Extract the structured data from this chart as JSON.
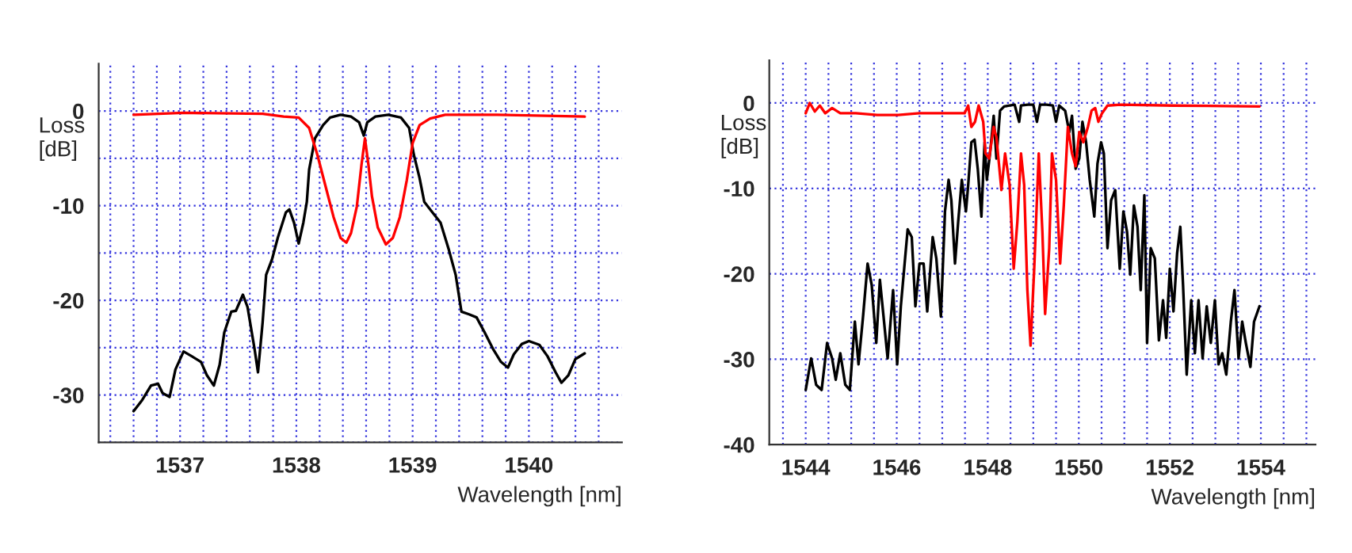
{
  "chart_data": [
    {
      "type": "line",
      "xlabel": "Wavelength [nm]",
      "ylabel": "Loss\n[dB]",
      "xlim": [
        1536.3,
        1540.8
      ],
      "ylim": [
        -35,
        5
      ],
      "xticks": [
        {
          "value": 1536.4,
          "label": null
        },
        {
          "value": 1536.6,
          "label": null
        },
        {
          "value": 1536.8,
          "label": null
        },
        1537,
        {
          "value": 1537.2,
          "label": null
        },
        {
          "value": 1537.4,
          "label": null
        },
        {
          "value": 1537.6,
          "label": null
        },
        {
          "value": 1537.8,
          "label": null
        },
        1538,
        {
          "value": 1538.2,
          "label": null
        },
        {
          "value": 1538.4,
          "label": null
        },
        {
          "value": 1538.6,
          "label": null
        },
        {
          "value": 1538.8,
          "label": null
        },
        1539,
        {
          "value": 1539.2,
          "label": null
        },
        {
          "value": 1539.4,
          "label": null
        },
        {
          "value": 1539.6,
          "label": null
        },
        {
          "value": 1539.8,
          "label": null
        },
        1540,
        {
          "value": 1540.2,
          "label": null
        },
        {
          "value": 1540.4,
          "label": null
        },
        {
          "value": 1540.6,
          "label": null
        }
      ],
      "yticks": [
        {
          "value": -35,
          "label": null
        },
        -30,
        {
          "value": -25,
          "label": null
        },
        -20,
        {
          "value": -15,
          "label": null
        },
        -10,
        {
          "value": -5,
          "label": null
        },
        0
      ],
      "grid": true,
      "legend": false,
      "marker": "none",
      "line_style": "solid",
      "series": [
        {
          "color": "#000000",
          "x": [
            1536.6,
            1536.67,
            1536.75,
            1536.81,
            1536.85,
            1536.91,
            1536.96,
            1537.03,
            1537.1,
            1537.18,
            1537.23,
            1537.29,
            1537.34,
            1537.38,
            1537.44,
            1537.48,
            1537.54,
            1537.58,
            1537.64,
            1537.67,
            1537.71,
            1537.74,
            1537.79,
            1537.84,
            1537.91,
            1537.94,
            1537.98,
            1538.02,
            1538.06,
            1538.09,
            1538.11,
            1538.16,
            1538.23,
            1538.29,
            1538.38,
            1538.47,
            1538.54,
            1538.58,
            1538.61,
            1538.68,
            1538.79,
            1538.9,
            1538.97,
            1539.01,
            1539.06,
            1539.1,
            1539.17,
            1539.24,
            1539.31,
            1539.37,
            1539.42,
            1539.49,
            1539.55,
            1539.62,
            1539.69,
            1539.76,
            1539.82,
            1539.87,
            1539.94,
            1540.0,
            1540.09,
            1540.16,
            1540.23,
            1540.28,
            1540.34,
            1540.4,
            1540.48
          ],
          "values": [
            -31.7,
            -30.6,
            -29.0,
            -28.8,
            -29.8,
            -30.2,
            -27.3,
            -25.4,
            -25.9,
            -26.5,
            -27.9,
            -29.0,
            -26.8,
            -23.4,
            -21.2,
            -21.1,
            -19.4,
            -20.7,
            -25.1,
            -27.6,
            -22.3,
            -17.3,
            -15.7,
            -13.4,
            -10.7,
            -10.4,
            -11.8,
            -14.0,
            -11.8,
            -9.6,
            -6.2,
            -2.9,
            -1.5,
            -0.7,
            -0.4,
            -0.6,
            -1.2,
            -2.6,
            -1.2,
            -0.6,
            -0.4,
            -0.7,
            -1.8,
            -4.6,
            -7.1,
            -9.6,
            -10.7,
            -11.8,
            -14.6,
            -17.3,
            -21.2,
            -21.5,
            -21.8,
            -23.4,
            -25.1,
            -26.5,
            -27.1,
            -25.7,
            -24.6,
            -24.3,
            -24.7,
            -25.9,
            -27.6,
            -28.7,
            -27.9,
            -26.2,
            -25.6
          ]
        },
        {
          "color": "#ff0000",
          "x": [
            1536.6,
            1537.03,
            1537.71,
            1537.89,
            1538.02,
            1538.11,
            1538.18,
            1538.25,
            1538.32,
            1538.38,
            1538.43,
            1538.47,
            1538.52,
            1538.56,
            1538.59,
            1538.62,
            1538.65,
            1538.7,
            1538.77,
            1538.83,
            1538.89,
            1538.95,
            1539.0,
            1539.06,
            1539.15,
            1539.28,
            1539.73,
            1540.48
          ],
          "values": [
            -0.4,
            -0.2,
            -0.3,
            -0.6,
            -0.7,
            -1.8,
            -4.6,
            -7.9,
            -11.2,
            -13.4,
            -13.9,
            -12.9,
            -10.1,
            -5.7,
            -2.9,
            -5.7,
            -9.0,
            -12.3,
            -14.1,
            -13.4,
            -11.2,
            -7.3,
            -3.4,
            -1.5,
            -0.8,
            -0.4,
            -0.4,
            -0.6
          ]
        }
      ]
    },
    {
      "type": "line",
      "xlabel": "Wavelength [nm]",
      "ylabel": "Loss\n[dB]",
      "xlim": [
        1543.2,
        1555.2
      ],
      "ylim": [
        -40,
        5
      ],
      "xticks": [
        {
          "value": 1543.5,
          "label": null
        },
        1544,
        {
          "value": 1544.5,
          "label": null
        },
        {
          "value": 1545,
          "label": null
        },
        {
          "value": 1545.5,
          "label": null
        },
        1546,
        {
          "value": 1546.5,
          "label": null
        },
        {
          "value": 1547,
          "label": null
        },
        {
          "value": 1547.5,
          "label": null
        },
        1548,
        {
          "value": 1548.5,
          "label": null
        },
        {
          "value": 1549,
          "label": null
        },
        {
          "value": 1549.5,
          "label": null
        },
        1550,
        {
          "value": 1550.5,
          "label": null
        },
        {
          "value": 1551,
          "label": null
        },
        {
          "value": 1551.5,
          "label": null
        },
        1552,
        {
          "value": 1552.5,
          "label": null
        },
        {
          "value": 1553,
          "label": null
        },
        {
          "value": 1553.5,
          "label": null
        },
        1554,
        {
          "value": 1554.5,
          "label": null
        },
        {
          "value": 1555,
          "label": null
        }
      ],
      "yticks": [
        -40,
        -30,
        -20,
        -10,
        0
      ],
      "grid": true,
      "legend": false,
      "marker": "none",
      "line_style": "solid",
      "series": [
        {
          "color": "#000000",
          "x": [
            1544.0,
            1544.12,
            1544.23,
            1544.35,
            1544.47,
            1544.58,
            1544.66,
            1544.76,
            1544.87,
            1544.97,
            1545.08,
            1545.16,
            1545.26,
            1545.36,
            1545.45,
            1545.55,
            1545.63,
            1545.71,
            1545.8,
            1545.92,
            1546.01,
            1546.09,
            1546.24,
            1546.33,
            1546.41,
            1546.5,
            1546.59,
            1546.67,
            1546.79,
            1546.87,
            1546.97,
            1547.06,
            1547.14,
            1547.2,
            1547.28,
            1547.35,
            1547.43,
            1547.52,
            1547.57,
            1547.64,
            1547.71,
            1547.78,
            1547.86,
            1547.93,
            1547.98,
            1548.05,
            1548.13,
            1548.19,
            1548.27,
            1548.36,
            1548.48,
            1548.59,
            1548.69,
            1548.73,
            1548.88,
            1549.0,
            1549.08,
            1549.15,
            1549.29,
            1549.43,
            1549.5,
            1549.57,
            1549.7,
            1549.79,
            1549.85,
            1549.93,
            1550.01,
            1550.08,
            1550.16,
            1550.24,
            1550.34,
            1550.41,
            1550.49,
            1550.55,
            1550.63,
            1550.71,
            1550.8,
            1550.9,
            1550.98,
            1551.06,
            1551.13,
            1551.21,
            1551.29,
            1551.36,
            1551.44,
            1551.5,
            1551.58,
            1551.67,
            1551.76,
            1551.85,
            1551.92,
            1552.0,
            1552.08,
            1552.16,
            1552.23,
            1552.29,
            1552.37,
            1552.47,
            1552.55,
            1552.63,
            1552.72,
            1552.81,
            1552.9,
            1552.99,
            1553.07,
            1553.15,
            1553.24,
            1553.34,
            1553.42,
            1553.51,
            1553.59,
            1553.67,
            1553.77,
            1553.85,
            1553.97
          ],
          "values": [
            -33.6,
            -29.9,
            -33.0,
            -33.6,
            -28.1,
            -29.9,
            -32.4,
            -29.3,
            -33.0,
            -33.6,
            -25.6,
            -30.6,
            -25.0,
            -18.8,
            -21.3,
            -28.1,
            -20.7,
            -25.0,
            -29.9,
            -21.9,
            -30.6,
            -23.8,
            -14.8,
            -15.7,
            -23.8,
            -18.8,
            -18.8,
            -24.4,
            -15.7,
            -18.2,
            -25.0,
            -12.7,
            -9.0,
            -11.4,
            -18.8,
            -13.9,
            -9.0,
            -12.7,
            -9.6,
            -4.6,
            -4.3,
            -7.7,
            -13.3,
            -4.6,
            -9.0,
            -5.9,
            -1.5,
            -6.5,
            -0.9,
            -0.4,
            -0.3,
            -0.2,
            -2.2,
            -0.3,
            -0.2,
            -0.2,
            -2.2,
            -0.2,
            -0.2,
            -0.3,
            -2.2,
            -0.3,
            -0.9,
            -3.4,
            -1.5,
            -7.7,
            -6.5,
            -2.2,
            -4.6,
            -9.0,
            -13.3,
            -7.1,
            -4.6,
            -5.9,
            -17.0,
            -11.4,
            -10.2,
            -19.4,
            -12.7,
            -15.1,
            -20.1,
            -12.0,
            -14.5,
            -21.9,
            -10.8,
            -28.1,
            -17.0,
            -18.2,
            -27.8,
            -23.1,
            -27.5,
            -19.4,
            -24.4,
            -17.6,
            -14.5,
            -21.3,
            -31.8,
            -23.1,
            -29.3,
            -23.1,
            -29.9,
            -23.8,
            -28.1,
            -23.1,
            -30.6,
            -29.3,
            -31.8,
            -25.6,
            -21.9,
            -29.9,
            -25.6,
            -28.1,
            -30.9,
            -25.6,
            -23.8
          ]
        },
        {
          "color": "#ff0000",
          "x": [
            1544.0,
            1544.09,
            1544.2,
            1544.31,
            1544.43,
            1544.58,
            1544.76,
            1545.1,
            1545.57,
            1546.03,
            1546.5,
            1546.85,
            1547.2,
            1547.49,
            1547.57,
            1547.64,
            1547.72,
            1547.8,
            1547.9,
            1547.95,
            1548.03,
            1548.13,
            1548.19,
            1548.3,
            1548.38,
            1548.48,
            1548.57,
            1548.65,
            1548.73,
            1548.8,
            1548.87,
            1548.94,
            1549.02,
            1549.12,
            1549.2,
            1549.26,
            1549.35,
            1549.41,
            1549.5,
            1549.59,
            1549.67,
            1549.76,
            1549.85,
            1549.93,
            1550.01,
            1550.1,
            1550.2,
            1550.28,
            1550.36,
            1550.43,
            1550.51,
            1550.63,
            1550.92,
            1552.08,
            1553.97
          ],
          "values": [
            -1.2,
            0.0,
            -1.0,
            -0.3,
            -1.2,
            -0.6,
            -1.2,
            -1.2,
            -1.4,
            -1.4,
            -1.2,
            -1.2,
            -1.2,
            -1.2,
            -0.3,
            -2.8,
            -2.2,
            -0.3,
            -2.2,
            -5.9,
            -6.5,
            -2.8,
            -4.0,
            -10.2,
            -5.9,
            -9.6,
            -19.4,
            -13.9,
            -5.9,
            -9.6,
            -21.9,
            -28.4,
            -19.4,
            -5.9,
            -15.1,
            -24.7,
            -17.0,
            -5.9,
            -9.0,
            -18.8,
            -12.0,
            -2.8,
            -5.9,
            -7.4,
            -3.4,
            -4.6,
            -2.8,
            -0.9,
            -0.6,
            -2.2,
            -1.2,
            -0.3,
            -0.2,
            -0.3,
            -0.4
          ]
        }
      ]
    }
  ]
}
